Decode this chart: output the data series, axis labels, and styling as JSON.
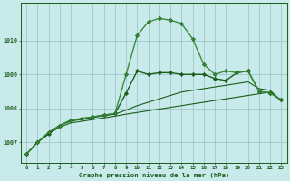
{
  "title": "Graphe pression niveau de la mer (hPa)",
  "xlabel_hours": [
    0,
    1,
    2,
    3,
    4,
    5,
    6,
    7,
    8,
    9,
    10,
    11,
    12,
    13,
    14,
    15,
    16,
    17,
    18,
    19,
    20,
    21,
    22,
    23
  ],
  "ylim": [
    1006.4,
    1011.1
  ],
  "yticks": [
    1007,
    1008,
    1009,
    1010
  ],
  "bg_color": "#c8eaea",
  "grid_color": "#a0c8c8",
  "line_color_main": "#1a5c1a",
  "line_color_light": "#3a8b3a",
  "line1_y": [
    1006.65,
    1007.0,
    1007.25,
    1007.45,
    1007.57,
    1007.62,
    1007.67,
    1007.72,
    1007.77,
    1007.83,
    1007.88,
    1007.93,
    1007.98,
    1008.03,
    1008.08,
    1008.13,
    1008.18,
    1008.23,
    1008.28,
    1008.33,
    1008.38,
    1008.43,
    1008.48,
    1008.22
  ],
  "line2_y": [
    1006.65,
    1007.0,
    1007.25,
    1007.5,
    1007.62,
    1007.68,
    1007.73,
    1007.78,
    1007.83,
    1007.95,
    1008.08,
    1008.18,
    1008.28,
    1008.38,
    1008.48,
    1008.53,
    1008.58,
    1008.63,
    1008.68,
    1008.73,
    1008.78,
    1008.58,
    1008.53,
    1008.22
  ],
  "line3_y": [
    1006.65,
    1007.0,
    1007.3,
    1007.5,
    1007.65,
    1007.7,
    1007.75,
    1007.8,
    1007.85,
    1009.0,
    1010.15,
    1010.55,
    1010.65,
    1010.6,
    1010.5,
    1010.05,
    1009.3,
    1009.0,
    1009.1,
    1009.05,
    1009.1,
    1008.5,
    1008.45,
    1008.25
  ],
  "line4_y": [
    1006.65,
    1007.0,
    1007.25,
    1007.5,
    1007.65,
    1007.7,
    1007.75,
    1007.8,
    1007.85,
    1008.45,
    1009.1,
    1009.0,
    1009.05,
    1009.05,
    1009.0,
    1009.0,
    1009.0,
    1008.88,
    1008.82,
    1009.05,
    1009.1,
    1008.5,
    1008.45,
    1008.25
  ]
}
